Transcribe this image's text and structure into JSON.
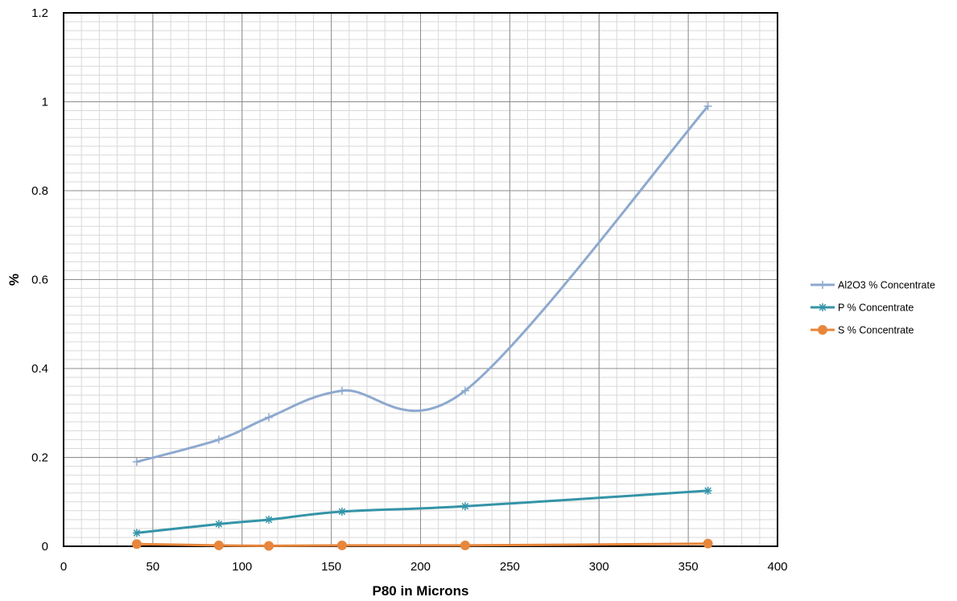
{
  "chart_data": {
    "type": "line",
    "title": "",
    "xlabel": "P80 in Microns",
    "ylabel": "%",
    "xlim": [
      0,
      400
    ],
    "ylim": [
      0,
      1.2
    ],
    "x_ticks": [
      "0",
      "50",
      "100",
      "150",
      "200",
      "250",
      "300",
      "350",
      "400"
    ],
    "y_ticks": [
      "0",
      "0.2",
      "0.4",
      "0.6",
      "0.8",
      "1",
      "1.2"
    ],
    "x_tick_values": [
      0,
      50,
      100,
      150,
      200,
      250,
      300,
      350,
      400
    ],
    "y_tick_values": [
      0,
      0.2,
      0.4,
      0.6,
      0.8,
      1.0,
      1.2
    ],
    "grid": true,
    "smooth": true,
    "legend_position": "right",
    "series": [
      {
        "name": "Al2O3 % Concentrate",
        "color": "#8EA9CF",
        "marker": "plus",
        "x": [
          41,
          87,
          115,
          156,
          225,
          361
        ],
        "y": [
          0.19,
          0.24,
          0.29,
          0.35,
          0.35,
          0.99
        ]
      },
      {
        "name": "P % Concentrate",
        "color": "#3494A8",
        "marker": "asterisk",
        "x": [
          41,
          87,
          115,
          156,
          225,
          361
        ],
        "y": [
          0.03,
          0.05,
          0.06,
          0.078,
          0.09,
          0.125
        ]
      },
      {
        "name": "S % Concentrate",
        "color": "#E7863C",
        "marker": "circle",
        "x": [
          41,
          87,
          115,
          156,
          225,
          361
        ],
        "y": [
          0.005,
          0.002,
          0.001,
          0.002,
          0.002,
          0.006
        ]
      }
    ]
  }
}
